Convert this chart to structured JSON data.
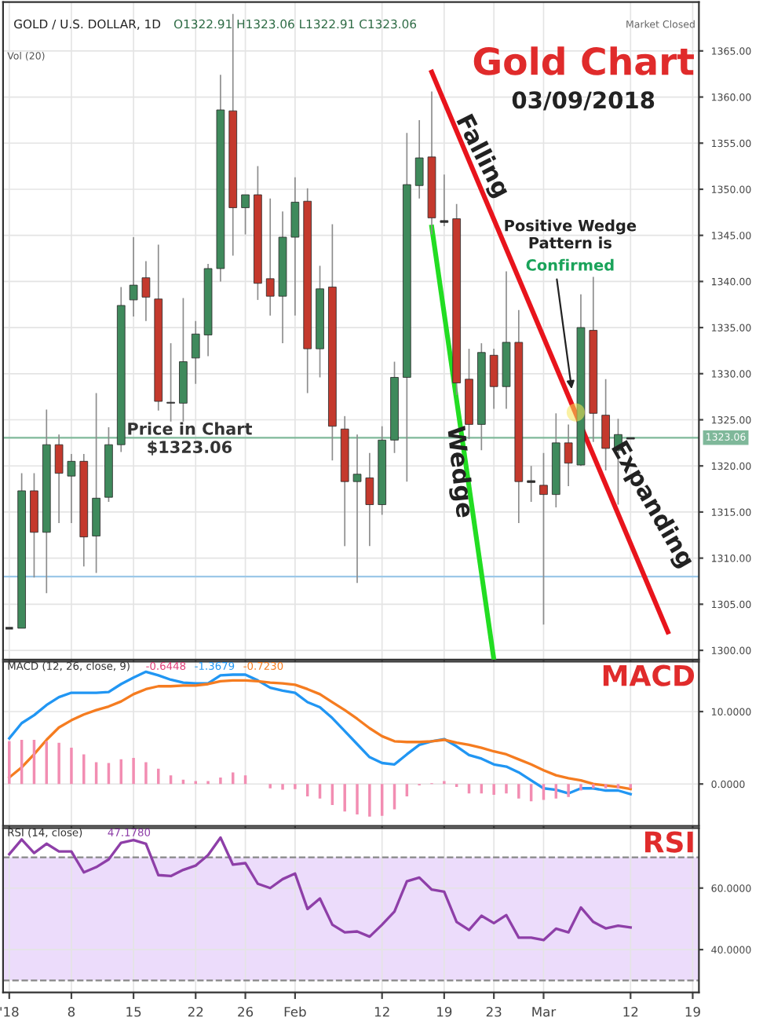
{
  "chart_data": [
    {
      "type": "candlestick",
      "title": "Gold Chart",
      "subtitle": "03/09/2018",
      "categories": [
        null,
        null,
        null,
        null,
        null,
        null,
        null,
        null,
        null,
        null,
        null,
        null,
        null,
        null,
        null,
        null,
        null,
        null,
        null,
        null,
        null,
        null,
        null,
        null,
        null,
        null,
        null,
        null,
        null,
        null,
        null,
        null,
        null,
        null,
        null,
        null,
        null,
        null,
        null,
        null,
        null,
        null,
        null,
        null,
        null,
        null,
        null,
        null,
        null,
        null,
        null,
        null,
        null,
        null,
        null,
        null
      ],
      "ohlc": [
        [
          1302.4,
          1302.4,
          1302.4,
          1302.4
        ],
        [
          1302.4,
          1319.2,
          1302.4,
          1317.3
        ],
        [
          1317.3,
          1319.2,
          1307.9,
          1312.8
        ],
        [
          1312.8,
          1326.1,
          1306.2,
          1322.3
        ],
        [
          1322.3,
          1323.4,
          1313.8,
          1319.2
        ],
        [
          1318.9,
          1321.3,
          1313.8,
          1320.5
        ],
        [
          1320.5,
          1321.3,
          1309.1,
          1312.3
        ],
        [
          1312.4,
          1327.9,
          1308.4,
          1316.5
        ],
        [
          1316.6,
          1324.2,
          1316.1,
          1322.3
        ],
        [
          1322.3,
          1339.4,
          1321.5,
          1337.4
        ],
        [
          1338.0,
          1344.8,
          1336.2,
          1339.6
        ],
        [
          1340.4,
          1342.2,
          1335.7,
          1338.3
        ],
        [
          1338.1,
          1344.0,
          1326.0,
          1327.0
        ],
        [
          1326.9,
          1333.3,
          1324.8,
          1326.8
        ],
        [
          1326.8,
          1338.2,
          1324.8,
          1331.3
        ],
        [
          1331.7,
          1335.7,
          1328.9,
          1334.3
        ],
        [
          1334.2,
          1341.9,
          1331.9,
          1341.4
        ],
        [
          1341.4,
          1362.4,
          1340.0,
          1358.6
        ],
        [
          1358.5,
          1369.0,
          1342.8,
          1348.0
        ],
        [
          1348.0,
          1349.4,
          1345.1,
          1349.4
        ],
        [
          1349.4,
          1352.5,
          1338.0,
          1339.8
        ],
        [
          1340.3,
          1349.0,
          1336.3,
          1338.4
        ],
        [
          1338.4,
          1347.6,
          1333.3,
          1344.8
        ],
        [
          1344.8,
          1351.3,
          1336.3,
          1348.6
        ],
        [
          1348.7,
          1350.1,
          1327.9,
          1332.7
        ],
        [
          1332.7,
          1341.7,
          1329.6,
          1339.2
        ],
        [
          1339.4,
          1346.2,
          1320.6,
          1324.3
        ],
        [
          1324.0,
          1325.4,
          1311.3,
          1318.3
        ],
        [
          1318.3,
          1323.4,
          1307.3,
          1319.1
        ],
        [
          1318.7,
          1321.4,
          1311.3,
          1315.8
        ],
        [
          1315.8,
          1324.3,
          1314.7,
          1322.8
        ],
        [
          1322.8,
          1331.3,
          1321.4,
          1329.6
        ],
        [
          1329.6,
          1356.1,
          1318.3,
          1350.5
        ],
        [
          1350.4,
          1357.5,
          1349.0,
          1353.4
        ],
        [
          1353.5,
          1360.6,
          1345.1,
          1346.9
        ],
        [
          1346.6,
          1351.6,
          1346.0,
          1346.4
        ],
        [
          1346.8,
          1348.4,
          1327.7,
          1329.0
        ],
        [
          1329.4,
          1332.7,
          1322.9,
          1324.5
        ],
        [
          1324.5,
          1333.3,
          1321.7,
          1332.3
        ],
        [
          1332.0,
          1332.7,
          1326.2,
          1328.6
        ],
        [
          1328.6,
          1341.1,
          1326.2,
          1333.4
        ],
        [
          1333.4,
          1336.9,
          1313.8,
          1318.3
        ],
        [
          1318.4,
          1320.0,
          1316.1,
          1318.2
        ],
        [
          1317.9,
          1321.4,
          1302.8,
          1316.9
        ],
        [
          1316.9,
          1325.7,
          1315.5,
          1322.5
        ],
        [
          1322.5,
          1324.5,
          1317.8,
          1320.3
        ],
        [
          1320.1,
          1338.6,
          1320.0,
          1335.0
        ],
        [
          1334.7,
          1340.5,
          1322.6,
          1325.7
        ],
        [
          1325.5,
          1329.4,
          1319.5,
          1321.9
        ],
        [
          1321.7,
          1325.1,
          1315.8,
          1323.4
        ],
        [
          1322.91,
          1323.06,
          1322.91,
          1323.06
        ],
        null,
        null,
        null,
        null,
        null
      ],
      "colors": [
        "#333333",
        "#3f8a5c",
        "#c4392d",
        "#3f8a5c",
        "#c4392d",
        "#3f8a5c",
        "#c4392d",
        "#3f8a5c",
        "#3f8a5c",
        "#3f8a5c",
        "#3f8a5c",
        "#c4392d",
        "#c4392d",
        "#333333",
        "#3f8a5c",
        "#3f8a5c",
        "#3f8a5c",
        "#3f8a5c",
        "#c4392d",
        "#3f8a5c",
        "#c4392d",
        "#c4392d",
        "#3f8a5c",
        "#3f8a5c",
        "#c4392d",
        "#3f8a5c",
        "#c4392d",
        "#c4392d",
        "#3f8a5c",
        "#c4392d",
        "#3f8a5c",
        "#3f8a5c",
        "#3f8a5c",
        "#3f8a5c",
        "#c4392d",
        "#333333",
        "#c4392d",
        "#c4392d",
        "#3f8a5c",
        "#c4392d",
        "#3f8a5c",
        "#c4392d",
        "#333333",
        "#c4392d",
        "#3f8a5c",
        "#c4392d",
        "#3f8a5c",
        "#c4392d",
        "#c4392d",
        "#3f8a5c",
        "#333333",
        null,
        null,
        null,
        null,
        null
      ],
      "series": [
        {
          "type": "line",
          "color": "#e8141c",
          "values": [
            null,
            null,
            null,
            null,
            null,
            null,
            null,
            null,
            null,
            null,
            null,
            null,
            null,
            null,
            null,
            null,
            null,
            null,
            null,
            null,
            null,
            null,
            null,
            null,
            null,
            null,
            null,
            null,
            null,
            null,
            null,
            null,
            null,
            null,
            1362.7,
            null,
            null,
            null,
            null,
            null,
            null,
            null,
            null,
            null,
            null,
            null,
            null,
            null,
            null,
            null,
            null,
            null,
            null,
            1302.0,
            null,
            null
          ]
        },
        {
          "type": "line",
          "color": "#22dd22",
          "values": [
            null,
            null,
            null,
            null,
            null,
            null,
            null,
            null,
            null,
            null,
            null,
            null,
            null,
            null,
            null,
            null,
            null,
            null,
            null,
            null,
            null,
            null,
            null,
            null,
            null,
            null,
            null,
            null,
            null,
            null,
            null,
            null,
            null,
            null,
            1345.9,
            null,
            null,
            null,
            null,
            1299.0,
            null,
            null,
            null,
            null,
            null,
            null,
            null,
            null,
            null,
            null,
            null,
            null,
            null,
            null,
            null,
            null
          ]
        }
      ],
      "ylim": [
        1299,
        1370.3
      ],
      "yticks": [
        {
          "value": 1300,
          "label": "1300.00"
        },
        {
          "value": 1305,
          "label": "1305.00"
        },
        {
          "value": 1310,
          "label": "1310.00"
        },
        {
          "value": 1315,
          "label": "1315.00"
        },
        {
          "value": 1320,
          "label": "1320.00"
        },
        {
          "value": 1325,
          "label": "1325.00"
        },
        {
          "value": 1330,
          "label": "1330.00"
        },
        {
          "value": 1335,
          "label": "1335.00"
        },
        {
          "value": 1340,
          "label": "1340.00"
        },
        {
          "value": 1345,
          "label": "1345.00"
        },
        {
          "value": 1350,
          "label": "1350.00"
        },
        {
          "value": 1355,
          "label": "1355.00"
        },
        {
          "value": 1360,
          "label": "1360.00"
        },
        {
          "value": 1365,
          "label": "1365.00"
        }
      ],
      "ref_lines": [
        {
          "axis": "y",
          "value": 1323.06,
          "label": "1323.06",
          "color": "#7fb89a"
        },
        {
          "axis": "y",
          "value": 1308.0,
          "color": "#9cc8e8"
        }
      ],
      "annotations": [
        "GOLD / U.S. DOLLAR, 1D",
        "O1322.91 H1323.06 L1322.91 C1323.06",
        "Vol (20)",
        "Market Closed",
        "Falling",
        "Positive Wedge\nPattern is",
        "Confirmed",
        "Price in Chart\n$1323.06",
        "Wedge",
        "Expanding"
      ],
      "grid": true,
      "tick_labels": "y"
    },
    {
      "type": "line",
      "title": "MACD",
      "categories": [
        null,
        null,
        null,
        null,
        null,
        null,
        null,
        null,
        null,
        null,
        null,
        null,
        null,
        null,
        null,
        null,
        null,
        null,
        null,
        null,
        null,
        null,
        null,
        null,
        null,
        null,
        null,
        null,
        null,
        null,
        null,
        null,
        null,
        null,
        null,
        null,
        null,
        null,
        null,
        null,
        null,
        null,
        null,
        null,
        null,
        null,
        null,
        null,
        null,
        null,
        null,
        null,
        null,
        null,
        null,
        null
      ],
      "series": [
        {
          "type": "bar",
          "color": "#f28db2",
          "values": [
            5.9,
            6.1,
            6.1,
            5.9,
            5.7,
            5.0,
            4.1,
            3.0,
            2.9,
            3.4,
            3.6,
            3.0,
            2.1,
            1.2,
            0.6,
            0.4,
            0.4,
            0.9,
            1.6,
            1.2,
            0,
            -0.6,
            -0.8,
            -0.7,
            -1.7,
            -2.0,
            -2.9,
            -3.8,
            -4.2,
            -4.5,
            -4.4,
            -3.5,
            -1.7,
            -0.2,
            0.1,
            0.4,
            -0.4,
            -1.3,
            -1.3,
            -1.5,
            -1.3,
            -2.0,
            -2.4,
            -2.2,
            -2.0,
            -1.8,
            -0.9,
            -0.6,
            -0.6,
            -0.6,
            -0.6,
            null,
            null,
            null,
            null,
            null
          ]
        },
        {
          "type": "line",
          "color": "#2196f3",
          "values": [
            6.3,
            8.4,
            9.5,
            10.9,
            12.0,
            12.6,
            12.6,
            12.6,
            12.7,
            13.8,
            14.7,
            15.5,
            15.0,
            14.4,
            14.0,
            13.9,
            13.9,
            15.0,
            15.1,
            15.1,
            14.3,
            13.3,
            12.9,
            12.6,
            11.3,
            10.6,
            9.1,
            7.3,
            5.5,
            3.7,
            2.9,
            2.7,
            4.1,
            5.4,
            5.9,
            6.2,
            5.2,
            4.0,
            3.5,
            2.7,
            2.4,
            1.6,
            0.5,
            -0.6,
            -0.8,
            -1.3,
            -0.6,
            -0.6,
            -0.9,
            -0.9,
            -1.4,
            null,
            null,
            null,
            null,
            null
          ]
        },
        {
          "type": "line",
          "color": "#f57c20",
          "values": [
            0.9,
            2.3,
            4.1,
            6.1,
            7.8,
            8.8,
            9.6,
            10.2,
            10.7,
            11.4,
            12.4,
            13.1,
            13.5,
            13.5,
            13.6,
            13.6,
            13.8,
            14.2,
            14.3,
            14.3,
            14.2,
            14.0,
            13.9,
            13.7,
            13.1,
            12.4,
            11.3,
            10.2,
            9.0,
            7.7,
            6.6,
            5.9,
            5.8,
            5.8,
            5.9,
            6.1,
            5.7,
            5.4,
            5.0,
            4.5,
            4.1,
            3.4,
            2.7,
            1.9,
            1.2,
            0.8,
            0.5,
            0.0,
            -0.2,
            -0.4,
            -0.7,
            null,
            null,
            null,
            null,
            null
          ]
        }
      ],
      "ylim": [
        -5.8,
        16.9
      ],
      "yticks": [
        {
          "value": 0,
          "label": "0.0000"
        },
        {
          "value": 10,
          "label": "10.0000"
        }
      ],
      "annotations": [
        "MACD (12, 26, close, 9)",
        "-0.6448",
        "-1.3679",
        "-0.7230"
      ],
      "grid": true,
      "tick_labels": "y"
    },
    {
      "type": "line",
      "title": "RSI",
      "categories": [
        "'18",
        null,
        null,
        null,
        null,
        "8",
        null,
        null,
        null,
        null,
        "15",
        null,
        null,
        null,
        null,
        "22",
        null,
        null,
        null,
        "26",
        null,
        null,
        null,
        "Feb",
        null,
        null,
        null,
        null,
        null,
        null,
        "12",
        null,
        null,
        null,
        null,
        "19",
        null,
        null,
        null,
        "23",
        null,
        null,
        null,
        "Mar",
        null,
        null,
        null,
        null,
        null,
        null,
        "12",
        null,
        null,
        null,
        null,
        "19"
      ],
      "series": [
        {
          "type": "line",
          "color": "#8e3fa8",
          "values": [
            71.0,
            75.8,
            71.4,
            74.4,
            71.9,
            71.9,
            65.1,
            66.8,
            69.3,
            74.7,
            75.6,
            74.4,
            64.2,
            63.9,
            65.9,
            67.3,
            70.7,
            76.4,
            67.6,
            68.1,
            61.4,
            60.0,
            62.9,
            64.7,
            53.2,
            56.6,
            48.1,
            45.6,
            45.9,
            44.2,
            48.1,
            52.4,
            62.2,
            63.4,
            59.5,
            58.8,
            49.0,
            46.4,
            51.0,
            48.6,
            51.2,
            43.9,
            43.9,
            43.1,
            46.8,
            45.6,
            53.7,
            49.0,
            46.9,
            47.8,
            47.2,
            null,
            null,
            null,
            null,
            null
          ]
        }
      ],
      "ylim": [
        26.1,
        79.5
      ],
      "yticks": [
        {
          "value": 40,
          "label": "40.0000"
        },
        {
          "value": 60,
          "label": "60.0000"
        }
      ],
      "bands": [
        {
          "axis": "y",
          "from": 30,
          "to": 70,
          "color": "#ecdcfb"
        }
      ],
      "ref_lines": [
        {
          "axis": "y",
          "value": 70,
          "color": "#888888",
          "line_style": "dashed"
        },
        {
          "axis": "y",
          "value": 30,
          "color": "#888888",
          "line_style": "dashed"
        }
      ],
      "annotations": [
        "RSI (14, close)",
        "47.1780"
      ],
      "grid": true
    }
  ]
}
